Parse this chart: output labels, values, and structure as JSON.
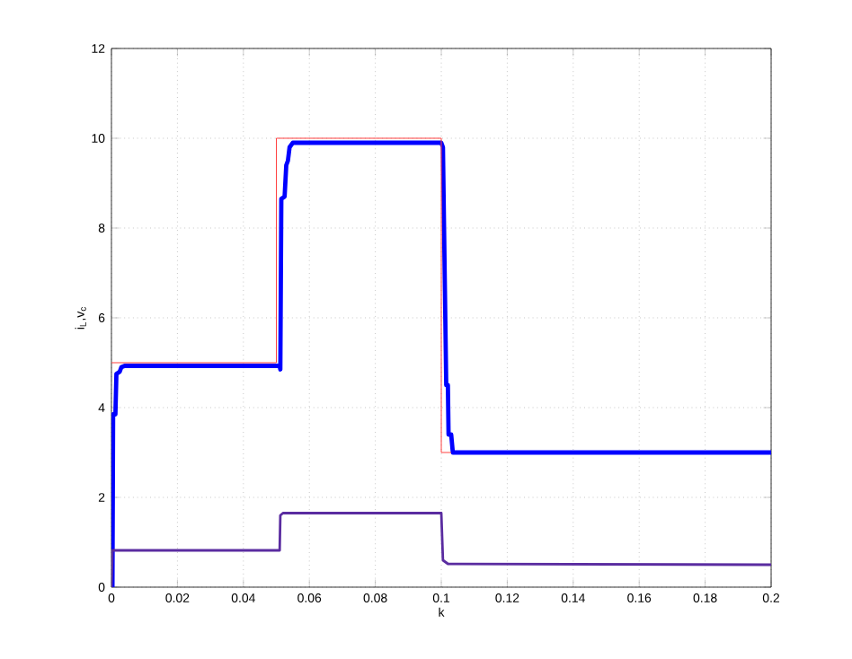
{
  "chart_data": {
    "type": "line",
    "xlabel": "k",
    "ylabel": "i$_{L}$,v$_{c}$",
    "xlim": [
      0,
      0.2
    ],
    "ylim": [
      0,
      12
    ],
    "xticks": [
      0,
      0.02,
      0.04,
      0.06,
      0.08,
      0.1,
      0.12,
      0.14,
      0.16,
      0.18,
      0.2
    ],
    "yticks": [
      0,
      2,
      4,
      6,
      8,
      10,
      12
    ],
    "grid": true,
    "marker": "none",
    "line_style": "solid",
    "series": [
      {
        "color": "#0000ff",
        "x": [
          0,
          0.0003,
          0.0005,
          0.0012,
          0.0015,
          0.0025,
          0.003,
          0.004,
          0.051,
          0.0512,
          0.0515,
          0.0525,
          0.053,
          0.0535,
          0.054,
          0.055,
          0.1,
          0.1005,
          0.1015,
          0.102,
          0.1022,
          0.103,
          0.1035,
          0.2
        ],
        "values": [
          0,
          0,
          3.85,
          3.85,
          4.75,
          4.8,
          4.9,
          4.93,
          4.93,
          4.85,
          8.65,
          8.7,
          9.4,
          9.5,
          9.8,
          9.9,
          9.9,
          9.8,
          4.5,
          4.5,
          3.4,
          3.4,
          3.0,
          3.0
        ]
      },
      {
        "color": "#5a2ca0",
        "x": [
          0,
          0.0003,
          0.051,
          0.0512,
          0.052,
          0.1,
          0.1005,
          0.102,
          0.2
        ],
        "values": [
          0,
          0.82,
          0.82,
          1.6,
          1.65,
          1.65,
          0.6,
          0.52,
          0.5
        ]
      },
      {
        "color": "#ff4040",
        "x": [
          0,
          0.05,
          0.05,
          0.1,
          0.1,
          0.103
        ],
        "values": [
          5,
          5,
          10,
          10,
          3,
          3
        ]
      }
    ]
  }
}
